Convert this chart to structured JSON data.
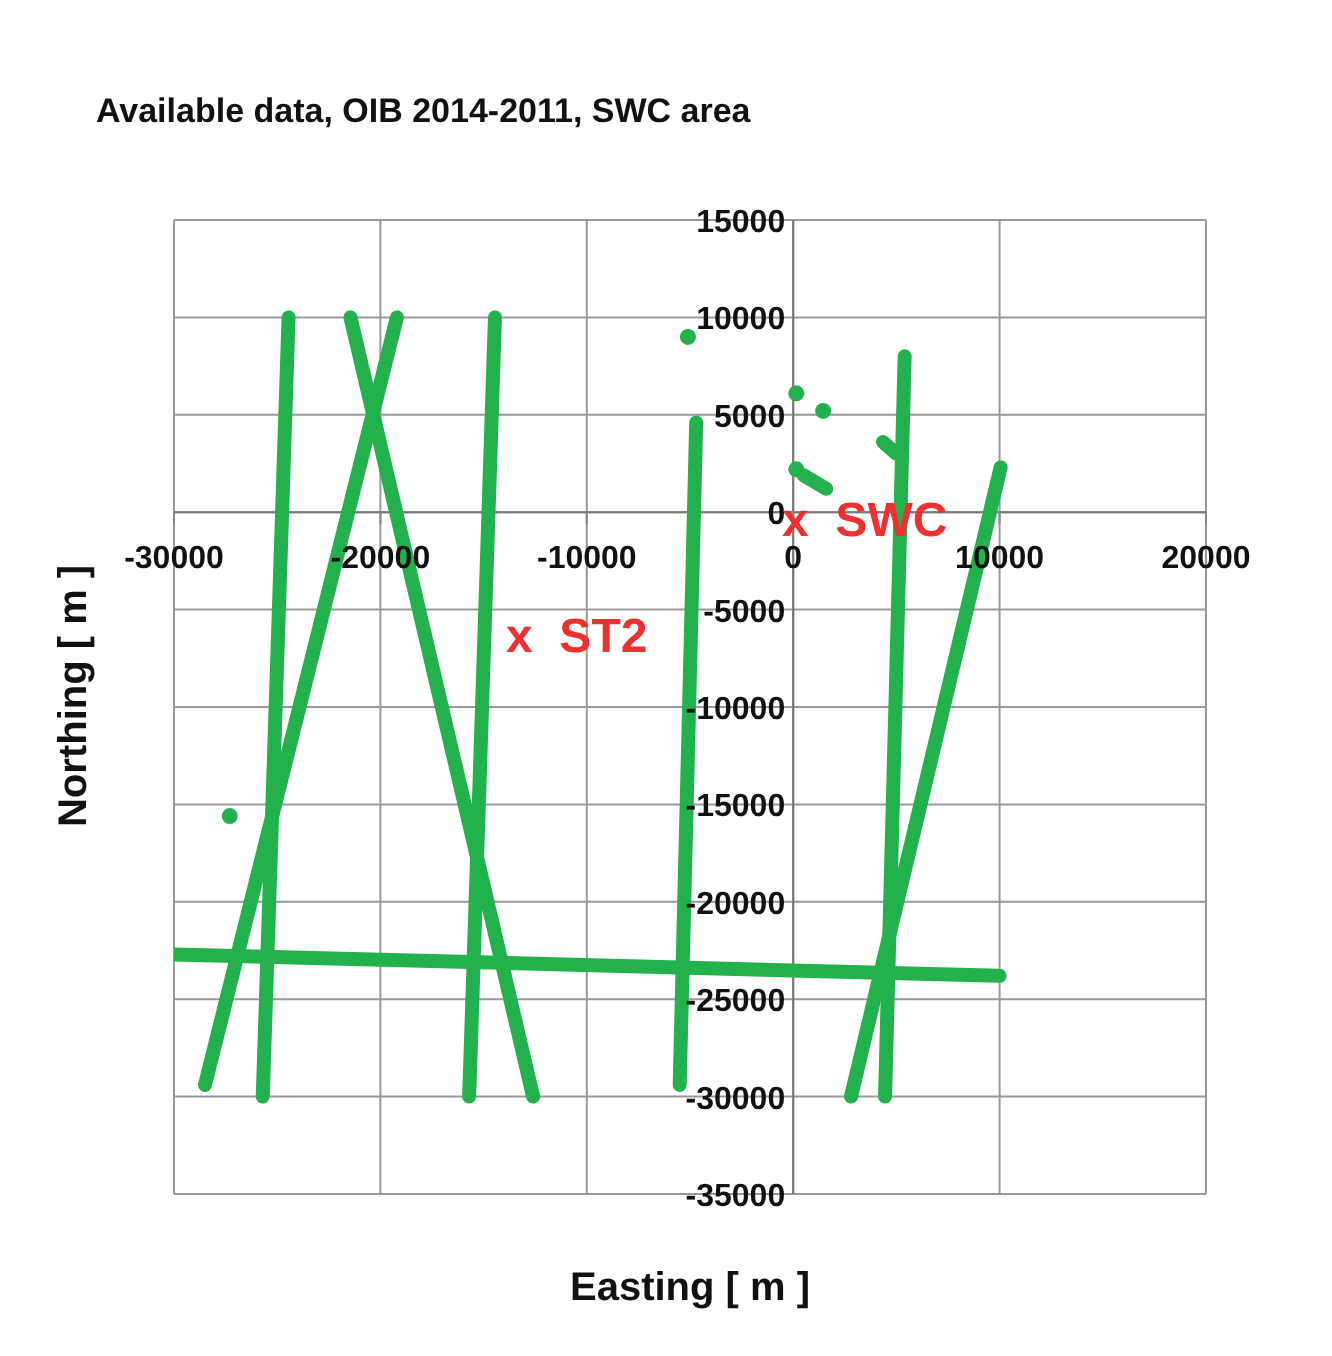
{
  "chart_data": {
    "type": "line",
    "title": "Available data, OIB 2014-2011, SWC area",
    "xlabel": "Easting [ m ]",
    "ylabel": "Northing [ m ]",
    "xlim": [
      -30000,
      20000
    ],
    "xticks": [
      -30000,
      -20000,
      -10000,
      0,
      10000,
      20000
    ],
    "ylim": [
      -35000,
      15000
    ],
    "yticks": [
      -35000,
      -30000,
      -25000,
      -20000,
      -15000,
      -10000,
      -5000,
      0,
      5000,
      10000,
      15000
    ],
    "grid": true,
    "legend": false,
    "series": [
      {
        "color": "#22b14c",
        "x": [
          -25700,
          -24450
        ],
        "values": [
          -30000,
          10000
        ]
      },
      {
        "color": "#22b14c",
        "x": [
          -28500,
          -19200
        ],
        "values": [
          -29400,
          10000
        ]
      },
      {
        "color": "#22b14c",
        "x": [
          -21450,
          -12600
        ],
        "values": [
          10000,
          -30000
        ]
      },
      {
        "color": "#22b14c",
        "x": [
          -15700,
          -14450
        ],
        "values": [
          -30000,
          10000
        ]
      },
      {
        "color": "#22b14c",
        "x": [
          -5500,
          -4700
        ],
        "values": [
          -29400,
          4600
        ]
      },
      {
        "color": "#22b14c",
        "x": [
          2800,
          10050
        ],
        "values": [
          -30000,
          2300
        ]
      },
      {
        "color": "#22b14c",
        "x": [
          4450,
          5400
        ],
        "values": [
          -30000,
          8000
        ]
      },
      {
        "color": "#22b14c",
        "x": [
          -30000,
          10000
        ],
        "values": [
          -22700,
          -23800
        ]
      },
      {
        "color": "#22b14c",
        "x": [
          500,
          1600
        ],
        "values": [
          1900,
          1200
        ]
      },
      {
        "color": "#22b14c",
        "x": [
          4350,
          5000
        ],
        "values": [
          3600,
          3000
        ]
      },
      {
        "type": "scatter",
        "marker": "circle",
        "color": "#22b14c",
        "x": [
          -5100,
          -27300,
          150,
          1450,
          150
        ],
        "values": [
          9000,
          -15600,
          6100,
          5200,
          2200
        ]
      }
    ],
    "annotations": [
      "x  SWC",
      "x  ST2"
    ]
  }
}
